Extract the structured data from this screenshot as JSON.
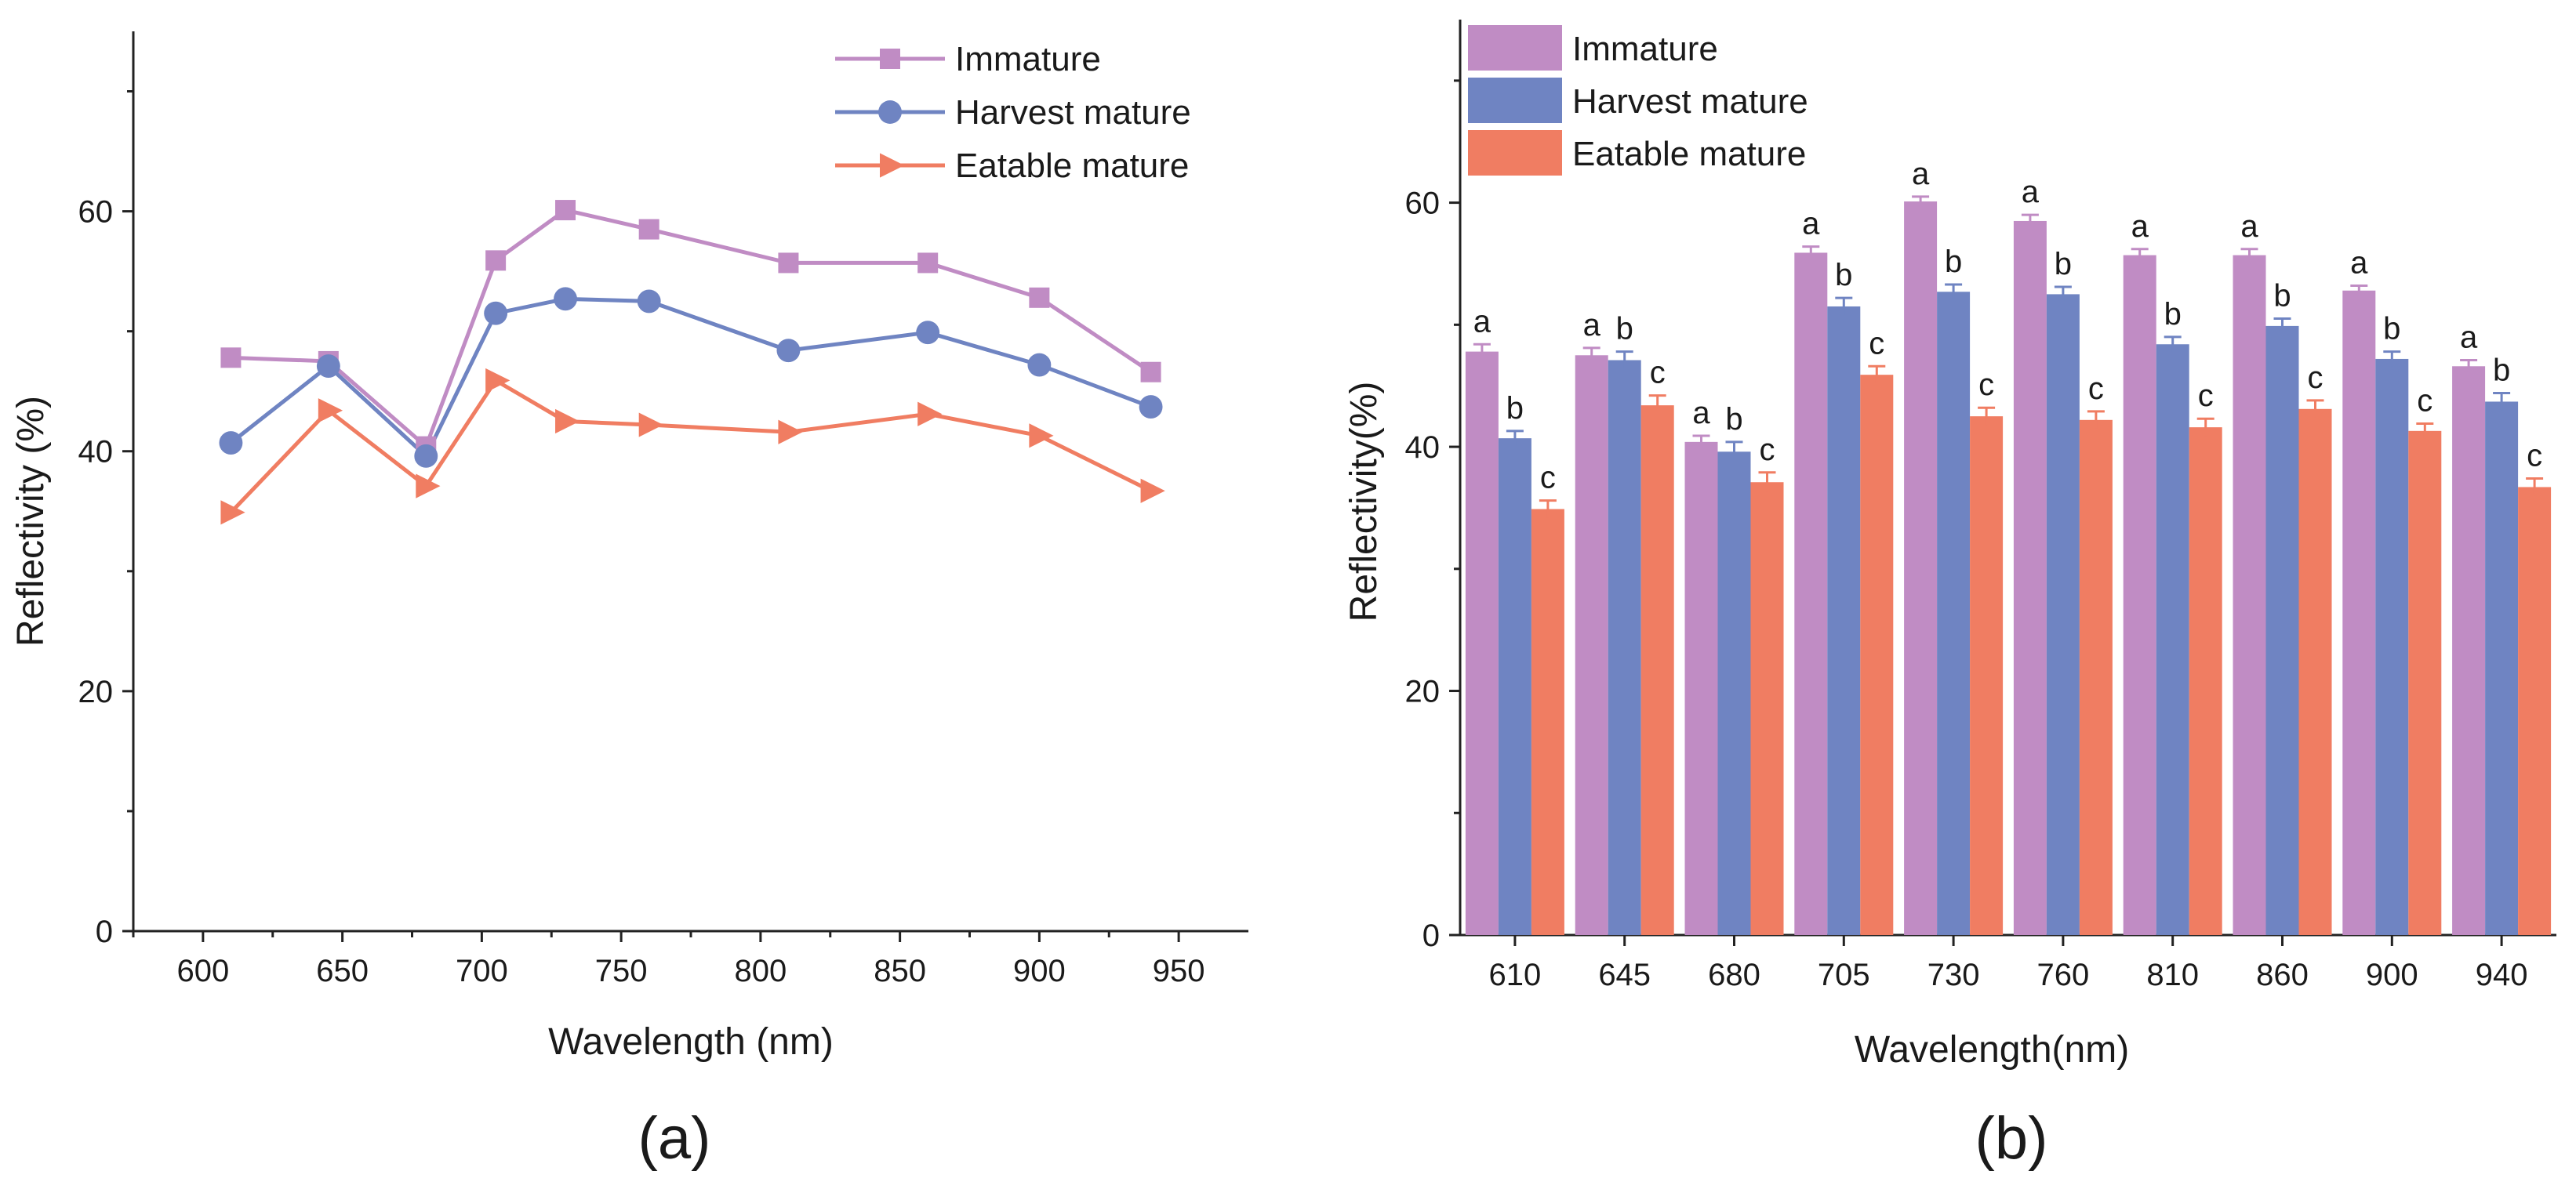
{
  "chart_data": [
    {
      "type": "line",
      "panel_label": "(a)",
      "xlabel": "Wavelength (nm)",
      "ylabel": "Reflectivity (%)",
      "xlim": [
        575,
        975
      ],
      "ylim": [
        0,
        75
      ],
      "x_ticks": [
        600,
        650,
        700,
        750,
        800,
        850,
        900,
        950
      ],
      "y_ticks": [
        0,
        20,
        40,
        60
      ],
      "x": [
        610,
        645,
        680,
        705,
        730,
        760,
        810,
        860,
        900,
        940
      ],
      "legend_position": "top-right",
      "series": [
        {
          "name": "Immature",
          "color": "#c08cc4",
          "marker": "square",
          "values": [
            47.8,
            47.5,
            40.4,
            55.9,
            60.1,
            58.5,
            55.7,
            55.7,
            52.8,
            46.6
          ]
        },
        {
          "name": "Harvest mature",
          "color": "#6f84c2",
          "marker": "circle",
          "values": [
            40.7,
            47.1,
            39.6,
            51.5,
            52.7,
            52.5,
            48.4,
            49.9,
            47.2,
            43.7
          ]
        },
        {
          "name": "Eatable mature",
          "color": "#f07d62",
          "marker": "triangle-right",
          "values": [
            34.9,
            43.4,
            37.1,
            45.9,
            42.5,
            42.2,
            41.6,
            43.1,
            41.3,
            36.7
          ]
        }
      ]
    },
    {
      "type": "bar",
      "panel_label": "(b)",
      "xlabel": "Wavelength(nm)",
      "ylabel": "Reflectivity(%)",
      "ylim": [
        0,
        75
      ],
      "y_ticks": [
        0,
        20,
        40,
        60
      ],
      "categories": [
        "610",
        "645",
        "680",
        "705",
        "730",
        "760",
        "810",
        "860",
        "900",
        "940"
      ],
      "legend_position": "top-left",
      "series": [
        {
          "name": "Immature",
          "color": "#c08cc4",
          "values": [
            47.8,
            47.5,
            40.4,
            55.9,
            60.1,
            58.5,
            55.7,
            55.7,
            52.8,
            46.6
          ],
          "errors": [
            0.6,
            0.6,
            0.5,
            0.5,
            0.4,
            0.5,
            0.5,
            0.5,
            0.4,
            0.5
          ],
          "significance": [
            "a",
            "a",
            "a",
            "a",
            "a",
            "a",
            "a",
            "a",
            "a",
            "a"
          ]
        },
        {
          "name": "Harvest mature",
          "color": "#6f84c2",
          "values": [
            40.7,
            47.1,
            39.6,
            51.5,
            52.7,
            52.5,
            48.4,
            49.9,
            47.2,
            43.7
          ],
          "errors": [
            0.6,
            0.7,
            0.8,
            0.7,
            0.6,
            0.6,
            0.6,
            0.6,
            0.6,
            0.7
          ],
          "significance": [
            "b",
            "b",
            "b",
            "b",
            "b",
            "b",
            "b",
            "b",
            "b",
            "b"
          ]
        },
        {
          "name": "Eatable mature",
          "color": "#f07d62",
          "values": [
            34.9,
            43.4,
            37.1,
            45.9,
            42.5,
            42.2,
            41.6,
            43.1,
            41.3,
            36.7
          ],
          "errors": [
            0.7,
            0.8,
            0.8,
            0.7,
            0.7,
            0.7,
            0.7,
            0.7,
            0.6,
            0.7
          ],
          "significance": [
            "c",
            "c",
            "c",
            "c",
            "c",
            "c",
            "c",
            "c",
            "c",
            "c"
          ]
        }
      ]
    }
  ]
}
